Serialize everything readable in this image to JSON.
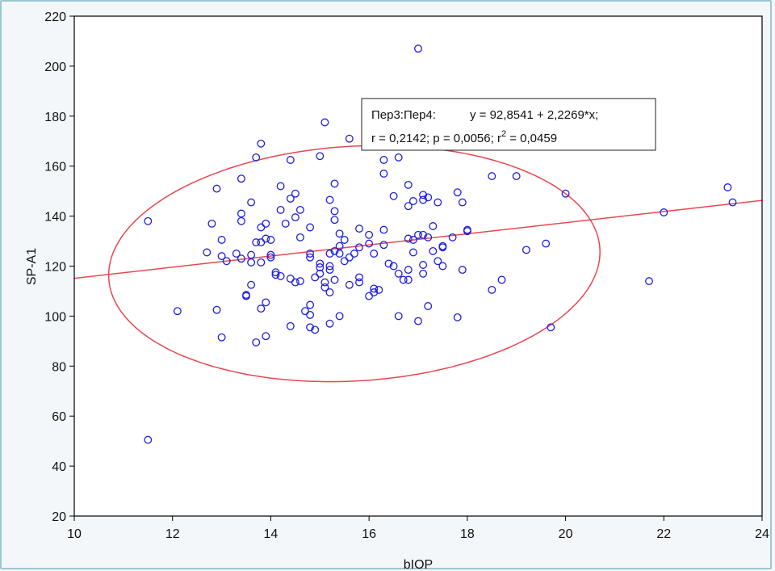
{
  "chart_data": {
    "type": "scatter",
    "title": "",
    "xlabel": "bIOP",
    "ylabel": "SP-A1",
    "xlim": [
      10,
      24
    ],
    "ylim": [
      20,
      220
    ],
    "xticks": [
      "10",
      "12",
      "14",
      "16",
      "18",
      "20",
      "22",
      "24"
    ],
    "yticks": [
      "20",
      "40",
      "60",
      "80",
      "100",
      "120",
      "140",
      "160",
      "180",
      "200",
      "220"
    ],
    "grid": false,
    "colors": {
      "points": "#1f1fe0",
      "fit_line": "#e8474f",
      "ellipse": "#e8474f"
    },
    "regression": {
      "intercept": 92.8541,
      "slope": 2.2269,
      "label_vars": "Пер3:Пер4:",
      "equation": "y = 92,8541 + 2,2269*x;",
      "stats_prefix": "r = 0,2142; p = 0,0056; r",
      "stats_sup": "2",
      "stats_suffix": " = 0,0459"
    },
    "ellipse": {
      "center": [
        15.7,
        121
      ],
      "semi_axis_major": 5.0,
      "semi_axis_minor": 47,
      "rotation_deg": 12.5,
      "description": "confidence ellipse"
    },
    "points": [
      [
        11.5,
        138
      ],
      [
        11.5,
        50.5
      ],
      [
        12.1,
        102
      ],
      [
        12.7,
        125.5
      ],
      [
        12.8,
        137
      ],
      [
        12.9,
        151
      ],
      [
        12.9,
        102.5
      ],
      [
        13.0,
        130.5
      ],
      [
        13.0,
        124
      ],
      [
        13.0,
        91.5
      ],
      [
        13.1,
        122
      ],
      [
        13.3,
        125
      ],
      [
        13.4,
        155
      ],
      [
        13.4,
        141
      ],
      [
        13.4,
        138
      ],
      [
        13.4,
        123
      ],
      [
        13.5,
        108.5
      ],
      [
        13.5,
        108
      ],
      [
        13.6,
        145.5
      ],
      [
        13.6,
        124.5
      ],
      [
        13.6,
        121.5
      ],
      [
        13.6,
        112.5
      ],
      [
        13.7,
        163.5
      ],
      [
        13.7,
        129.5
      ],
      [
        13.7,
        89.5
      ],
      [
        13.8,
        169
      ],
      [
        13.8,
        135.5
      ],
      [
        13.8,
        129.5
      ],
      [
        13.8,
        121.5
      ],
      [
        13.8,
        103
      ],
      [
        13.9,
        137
      ],
      [
        13.9,
        131
      ],
      [
        13.9,
        105.5
      ],
      [
        13.9,
        92
      ],
      [
        14.0,
        130.5
      ],
      [
        14.0,
        124.5
      ],
      [
        14.0,
        123.5
      ],
      [
        14.1,
        117.5
      ],
      [
        14.1,
        116.5
      ],
      [
        14.2,
        152
      ],
      [
        14.2,
        142.5
      ],
      [
        14.2,
        116
      ],
      [
        14.3,
        137
      ],
      [
        14.4,
        162.5
      ],
      [
        14.4,
        147
      ],
      [
        14.4,
        115
      ],
      [
        14.4,
        96
      ],
      [
        14.5,
        149
      ],
      [
        14.5,
        139.5
      ],
      [
        14.5,
        113.5
      ],
      [
        14.6,
        142.5
      ],
      [
        14.6,
        131.5
      ],
      [
        14.6,
        114
      ],
      [
        14.7,
        102
      ],
      [
        14.8,
        135.5
      ],
      [
        14.8,
        125
      ],
      [
        14.8,
        123.5
      ],
      [
        14.8,
        104.5
      ],
      [
        14.8,
        100.5
      ],
      [
        14.8,
        95.5
      ],
      [
        14.9,
        94.5
      ],
      [
        14.9,
        115.5
      ],
      [
        15.0,
        164
      ],
      [
        15.0,
        121
      ],
      [
        15.0,
        119.5
      ],
      [
        15.0,
        117
      ],
      [
        15.1,
        177.5
      ],
      [
        15.1,
        113.5
      ],
      [
        15.1,
        111.5
      ],
      [
        15.2,
        146.5
      ],
      [
        15.2,
        125
      ],
      [
        15.2,
        120
      ],
      [
        15.2,
        118.5
      ],
      [
        15.2,
        109.5
      ],
      [
        15.2,
        97
      ],
      [
        15.3,
        153
      ],
      [
        15.3,
        142
      ],
      [
        15.3,
        138.5
      ],
      [
        15.3,
        126
      ],
      [
        15.3,
        114.5
      ],
      [
        15.4,
        133
      ],
      [
        15.4,
        128
      ],
      [
        15.4,
        125
      ],
      [
        15.4,
        100
      ],
      [
        15.5,
        130.5
      ],
      [
        15.5,
        122
      ],
      [
        15.6,
        171
      ],
      [
        15.6,
        123.5
      ],
      [
        15.6,
        112.5
      ],
      [
        15.7,
        125
      ],
      [
        15.8,
        135
      ],
      [
        15.8,
        127.5
      ],
      [
        15.8,
        115.5
      ],
      [
        15.8,
        113.5
      ],
      [
        16.0,
        132.5
      ],
      [
        16.0,
        129
      ],
      [
        16.0,
        108
      ],
      [
        16.1,
        125
      ],
      [
        16.1,
        111
      ],
      [
        16.1,
        109.5
      ],
      [
        16.2,
        110.5
      ],
      [
        16.3,
        162.5
      ],
      [
        16.3,
        157
      ],
      [
        16.3,
        134.5
      ],
      [
        16.3,
        128.5
      ],
      [
        16.4,
        121
      ],
      [
        16.5,
        148
      ],
      [
        16.5,
        120
      ],
      [
        16.6,
        163.5
      ],
      [
        16.6,
        100
      ],
      [
        16.6,
        117
      ],
      [
        16.7,
        114.5
      ],
      [
        16.8,
        152.5
      ],
      [
        16.8,
        144
      ],
      [
        16.8,
        131
      ],
      [
        16.8,
        118.5
      ],
      [
        16.8,
        114.5
      ],
      [
        16.9,
        146
      ],
      [
        16.9,
        130.5
      ],
      [
        16.9,
        125.5
      ],
      [
        17.0,
        207
      ],
      [
        17.0,
        132.5
      ],
      [
        17.0,
        98
      ],
      [
        17.1,
        148.5
      ],
      [
        17.1,
        146.5
      ],
      [
        17.1,
        132.5
      ],
      [
        17.1,
        120.5
      ],
      [
        17.1,
        117
      ],
      [
        17.2,
        147.5
      ],
      [
        17.2,
        131.5
      ],
      [
        17.2,
        104
      ],
      [
        17.3,
        136
      ],
      [
        17.3,
        126
      ],
      [
        17.4,
        145.5
      ],
      [
        17.4,
        122
      ],
      [
        17.5,
        128
      ],
      [
        17.5,
        127.5
      ],
      [
        17.5,
        120
      ],
      [
        17.7,
        131.5
      ],
      [
        17.8,
        149.5
      ],
      [
        17.8,
        99.5
      ],
      [
        17.9,
        145.5
      ],
      [
        17.9,
        118.5
      ],
      [
        18.0,
        134.5
      ],
      [
        18.0,
        134
      ],
      [
        18.5,
        156
      ],
      [
        18.5,
        110.5
      ],
      [
        18.7,
        114.5
      ],
      [
        19.0,
        156
      ],
      [
        19.2,
        126.5
      ],
      [
        19.6,
        129
      ],
      [
        19.7,
        95.5
      ],
      [
        20.0,
        149
      ],
      [
        21.7,
        114
      ],
      [
        22.0,
        141.5
      ],
      [
        23.3,
        151.5
      ],
      [
        23.4,
        145.5
      ]
    ]
  }
}
